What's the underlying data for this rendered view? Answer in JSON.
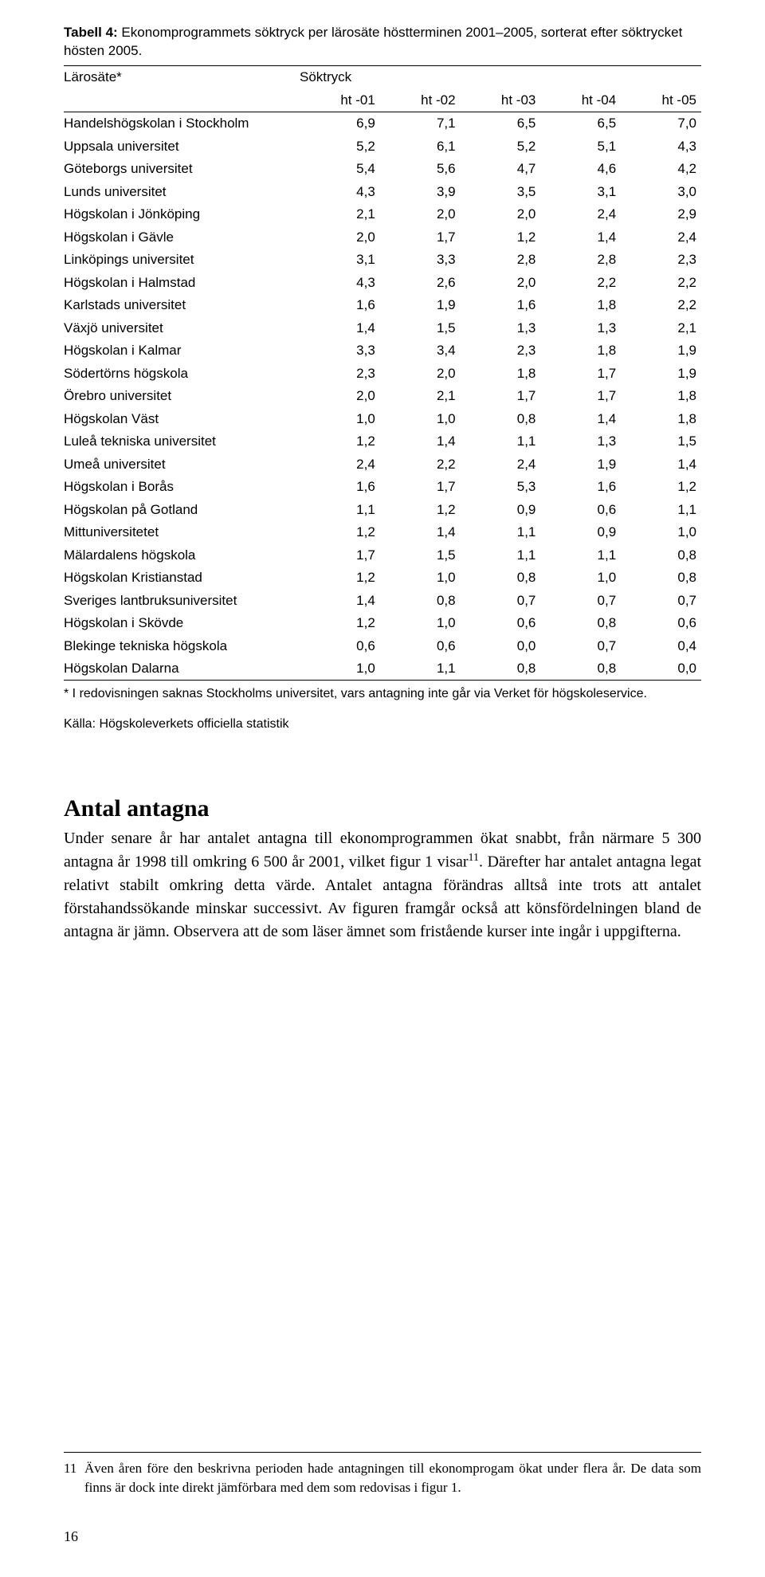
{
  "table": {
    "caption_lead": "Tabell 4:",
    "caption_rest": " Ekonomprogrammets söktryck per lärosäte höstterminen 2001–2005, sorterat efter söktrycket hösten 2005.",
    "col0_header": "Lärosäte*",
    "group_header": "Söktryck",
    "columns": [
      "ht -01",
      "ht -02",
      "ht -03",
      "ht -04",
      "ht -05"
    ],
    "rows": [
      {
        "name": "Handelshögskolan i Stockholm",
        "v": [
          "6,9",
          "7,1",
          "6,5",
          "6,5",
          "7,0"
        ]
      },
      {
        "name": "Uppsala universitet",
        "v": [
          "5,2",
          "6,1",
          "5,2",
          "5,1",
          "4,3"
        ]
      },
      {
        "name": "Göteborgs universitet",
        "v": [
          "5,4",
          "5,6",
          "4,7",
          "4,6",
          "4,2"
        ]
      },
      {
        "name": "Lunds universitet",
        "v": [
          "4,3",
          "3,9",
          "3,5",
          "3,1",
          "3,0"
        ]
      },
      {
        "name": "Högskolan i Jönköping",
        "v": [
          "2,1",
          "2,0",
          "2,0",
          "2,4",
          "2,9"
        ]
      },
      {
        "name": "Högskolan i Gävle",
        "v": [
          "2,0",
          "1,7",
          "1,2",
          "1,4",
          "2,4"
        ]
      },
      {
        "name": "Linköpings universitet",
        "v": [
          "3,1",
          "3,3",
          "2,8",
          "2,8",
          "2,3"
        ]
      },
      {
        "name": "Högskolan i Halmstad",
        "v": [
          "4,3",
          "2,6",
          "2,0",
          "2,2",
          "2,2"
        ]
      },
      {
        "name": "Karlstads universitet",
        "v": [
          "1,6",
          "1,9",
          "1,6",
          "1,8",
          "2,2"
        ]
      },
      {
        "name": "Växjö universitet",
        "v": [
          "1,4",
          "1,5",
          "1,3",
          "1,3",
          "2,1"
        ]
      },
      {
        "name": "Högskolan i Kalmar",
        "v": [
          "3,3",
          "3,4",
          "2,3",
          "1,8",
          "1,9"
        ]
      },
      {
        "name": "Södertörns högskola",
        "v": [
          "2,3",
          "2,0",
          "1,8",
          "1,7",
          "1,9"
        ]
      },
      {
        "name": "Örebro universitet",
        "v": [
          "2,0",
          "2,1",
          "1,7",
          "1,7",
          "1,8"
        ]
      },
      {
        "name": "Högskolan Väst",
        "v": [
          "1,0",
          "1,0",
          "0,8",
          "1,4",
          "1,8"
        ]
      },
      {
        "name": "Luleå tekniska universitet",
        "v": [
          "1,2",
          "1,4",
          "1,1",
          "1,3",
          "1,5"
        ]
      },
      {
        "name": "Umeå universitet",
        "v": [
          "2,4",
          "2,2",
          "2,4",
          "1,9",
          "1,4"
        ]
      },
      {
        "name": "Högskolan i Borås",
        "v": [
          "1,6",
          "1,7",
          "5,3",
          "1,6",
          "1,2"
        ]
      },
      {
        "name": "Högskolan på Gotland",
        "v": [
          "1,1",
          "1,2",
          "0,9",
          "0,6",
          "1,1"
        ]
      },
      {
        "name": "Mittuniversitetet",
        "v": [
          "1,2",
          "1,4",
          "1,1",
          "0,9",
          "1,0"
        ]
      },
      {
        "name": "Mälardalens högskola",
        "v": [
          "1,7",
          "1,5",
          "1,1",
          "1,1",
          "0,8"
        ]
      },
      {
        "name": "Högskolan Kristianstad",
        "v": [
          "1,2",
          "1,0",
          "0,8",
          "1,0",
          "0,8"
        ]
      },
      {
        "name": "Sveriges lantbruksuniversitet",
        "v": [
          "1,4",
          "0,8",
          "0,7",
          "0,7",
          "0,7"
        ]
      },
      {
        "name": "Högskolan i Skövde",
        "v": [
          "1,2",
          "1,0",
          "0,6",
          "0,8",
          "0,6"
        ]
      },
      {
        "name": "Blekinge tekniska högskola",
        "v": [
          "0,6",
          "0,6",
          "0,0",
          "0,7",
          "0,4"
        ]
      },
      {
        "name": "Högskolan Dalarna",
        "v": [
          "1,0",
          "1,1",
          "0,8",
          "0,8",
          "0,0"
        ]
      }
    ],
    "footnote": "* I redovisningen saknas Stockholms universitet, vars antagning inte går via Verket för högskoleservice.",
    "source": "Källa: Högskoleverkets officiella statistik",
    "col_widths": [
      "37%",
      "12.6%",
      "12.6%",
      "12.6%",
      "12.6%",
      "12.6%"
    ]
  },
  "section": {
    "heading": "Antal antagna",
    "paragraph_html": "Under senare år har antalet antagna till ekonomprogrammen ökat snabbt, från närmare 5 300 antagna år 1998 till omkring 6 500 år 2001, vilket figur 1 visar<sup>11</sup>. Därefter har antalet antagna legat relativt stabilt omkring detta värde. Antalet antagna förändras alltså inte trots att antalet förstahandssökande minskar successivt. Av figuren framgår också att könsfördelningen bland de antagna är jämn. Observera att de som läser ämnet som fristående kurser inte ingår i uppgifterna."
  },
  "endnote": {
    "num": "11",
    "text": "Även åren före den beskrivna perioden hade antagningen till ekonomprogam ökat under flera år. De data som finns är dock inte direkt jämförbara med dem som redovisas i figur 1."
  },
  "page_number": "16"
}
